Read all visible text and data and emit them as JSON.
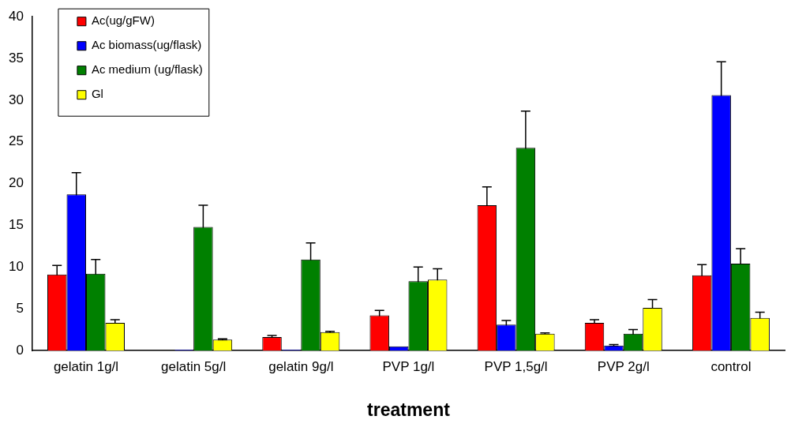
{
  "chart_data": {
    "type": "bar",
    "xlabel": "treatment",
    "categories": [
      "gelatin 1g/l",
      "gelatin 5g/l",
      "gelatin 9g/l",
      "PVP 1g/l",
      "PVP 1,5g/l",
      "PVP 2g/l",
      "control"
    ],
    "series": [
      {
        "name": "Ac(ug/gFW)",
        "color": "#ff0000",
        "values": [
          9.1,
          null,
          1.6,
          4.2,
          17.4,
          3.3,
          9.0
        ],
        "errors": [
          1.1,
          null,
          0.2,
          0.6,
          2.2,
          0.4,
          1.3
        ]
      },
      {
        "name": "Ac biomass(ug/flask)",
        "color": "#0000ff",
        "values": [
          18.7,
          0.1,
          0.1,
          0.5,
          3.1,
          0.6,
          30.6
        ],
        "errors": [
          2.6,
          null,
          null,
          null,
          0.5,
          0.1,
          4.0
        ]
      },
      {
        "name": "Ac medium (ug/flask)",
        "color": "#008000",
        "values": [
          9.2,
          14.8,
          10.9,
          8.3,
          24.3,
          2.0,
          10.4
        ],
        "errors": [
          1.7,
          2.6,
          2.0,
          1.7,
          4.4,
          0.5,
          1.8
        ]
      },
      {
        "name": "Gl",
        "color": "#ffff00",
        "values": [
          3.3,
          1.3,
          2.2,
          8.5,
          2.0,
          5.1,
          3.9
        ],
        "errors": [
          0.4,
          0.1,
          0.1,
          1.3,
          0.1,
          1.0,
          0.7
        ]
      }
    ],
    "ylim": [
      0,
      40
    ],
    "yticks": [
      0,
      5,
      10,
      15,
      20,
      25,
      30,
      35,
      40
    ],
    "grid": false,
    "legend": "top left"
  }
}
